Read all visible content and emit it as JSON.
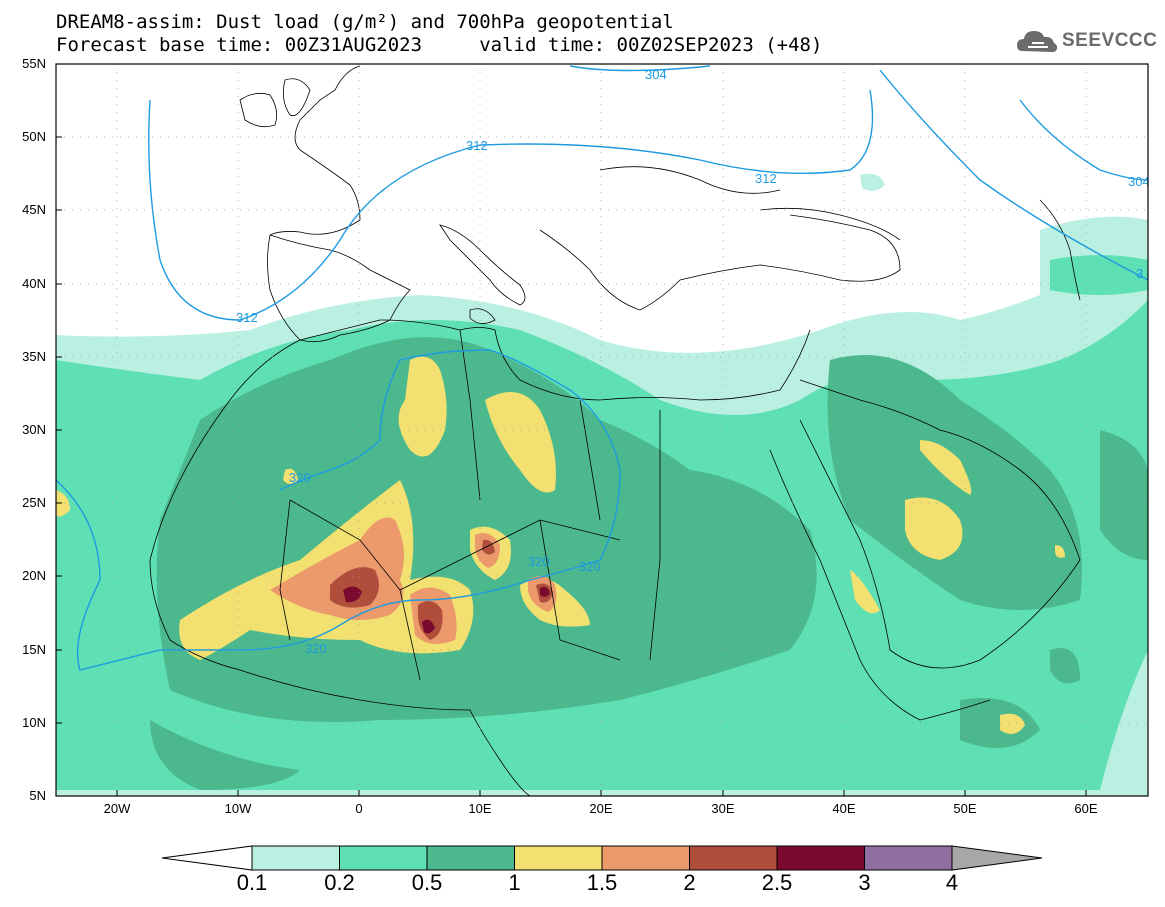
{
  "title": {
    "line1": "DREAM8-assim: Dust load (g/m²) and 700hPa geopotential",
    "line2": "Forecast base time: 00Z31AUG2023     valid time: 00Z02SEP2023 (+48)"
  },
  "logo": {
    "text": "SEEVCCC",
    "icon": "cloud-icon"
  },
  "axes": {
    "lat_labels": [
      "55N",
      "50N",
      "45N",
      "40N",
      "35N",
      "30N",
      "25N",
      "20N",
      "15N",
      "10N",
      "5N"
    ],
    "lon_labels": [
      "20W",
      "10W",
      "0",
      "10E",
      "20E",
      "30E",
      "40E",
      "50E",
      "60E"
    ],
    "lon_range": [
      -25,
      65
    ],
    "lat_range": [
      5,
      55
    ]
  },
  "contour_labels": [
    "304",
    "312",
    "312",
    "312",
    "304",
    "3",
    "320",
    "320",
    "320",
    "320"
  ],
  "colorbar": {
    "levels": [
      "0.1",
      "0.2",
      "0.5",
      "1",
      "1.5",
      "2",
      "2.5",
      "3",
      "4"
    ],
    "colors": [
      "#b9f0e1",
      "#5fe0b4",
      "#4cb88e",
      "#f2e070",
      "#ec9a6c",
      "#b04e3c",
      "#7a0a2e",
      "#8f6fa0",
      "#a8a8a8"
    ],
    "under_color": "#ffffff"
  },
  "colors": {
    "dust_very_light": "#b9f0e1",
    "dust_light": "#5fe0b4",
    "dust_medium": "#4cb88e",
    "dust_yellow": "#f2e070",
    "dust_orange": "#ec9a6c",
    "dust_brown": "#b04e3c",
    "dust_dark": "#7a0a2e",
    "contour": "#1e9be0"
  }
}
